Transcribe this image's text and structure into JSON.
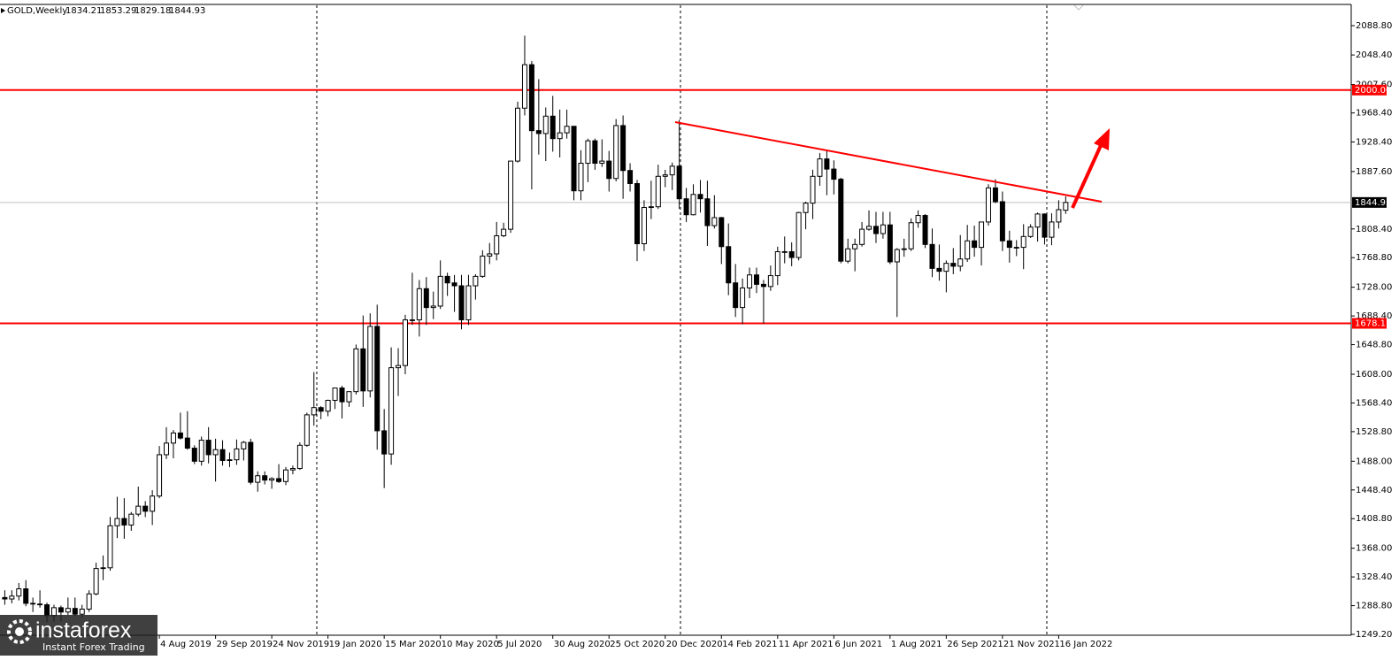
{
  "chart_data": {
    "type": "candlestick",
    "title": "GOLD,Weekly",
    "categories": [
      null,
      null,
      null,
      null,
      null,
      null,
      null,
      null,
      null,
      null,
      null,
      null,
      null,
      null,
      null,
      null,
      null,
      null,
      null,
      null,
      null,
      null,
      "4 Aug 2019",
      null,
      null,
      null,
      null,
      null,
      null,
      null,
      "29 Sep 2019",
      null,
      null,
      null,
      null,
      null,
      null,
      null,
      "24 Nov 2019",
      null,
      null,
      null,
      null,
      null,
      null,
      null,
      "19 Jan 2020",
      null,
      null,
      null,
      null,
      null,
      null,
      null,
      "15 Mar 2020",
      null,
      null,
      null,
      null,
      null,
      null,
      null,
      "10 May 2020",
      null,
      null,
      null,
      null,
      null,
      null,
      null,
      "5 Jul 2020",
      null,
      null,
      null,
      null,
      null,
      null,
      null,
      "30 Aug 2020",
      null,
      null,
      null,
      null,
      null,
      null,
      null,
      "25 Oct 2020",
      null,
      null,
      null,
      null,
      null,
      null,
      null,
      "20 Dec 2020",
      null,
      null,
      null,
      null,
      null,
      null,
      null,
      "14 Feb 2021",
      null,
      null,
      null,
      null,
      null,
      null,
      null,
      "11 Apr 2021",
      null,
      null,
      null,
      null,
      null,
      null,
      null,
      "6 Jun 2021",
      null,
      null,
      null,
      null,
      null,
      null,
      null,
      "1 Aug 2021",
      null,
      null,
      null,
      null,
      null,
      null,
      null,
      "26 Sep 2021",
      null,
      null,
      null,
      null,
      null,
      null,
      null,
      "21 Nov 2021",
      null,
      null,
      null,
      null,
      null,
      null,
      null,
      "16 Jan 2022",
      null
    ],
    "open": [
      1300,
      1298,
      1302,
      1312,
      1292,
      1291,
      1290,
      1275,
      1286,
      1280,
      1285,
      1277,
      1284,
      1305,
      1340,
      1341,
      1399,
      1409,
      1400,
      1415,
      1426,
      1419,
      1440,
      1497,
      1513,
      1527,
      1520,
      1506,
      1488,
      1517,
      1497,
      1504,
      1489,
      1490,
      1505,
      1514,
      1459,
      1468,
      1462,
      1464,
      1460,
      1476,
      1478,
      1510,
      1552,
      1562,
      1557,
      1572,
      1589,
      1570,
      1584,
      1643,
      1585,
      1674,
      1530,
      1498,
      1617,
      1620,
      1683,
      1683,
      1726,
      1700,
      1702,
      1743,
      1734,
      1730,
      1683,
      1730,
      1743,
      1771,
      1774,
      1799,
      1808,
      1902,
      1975,
      2035,
      1944,
      1940,
      1964,
      1933,
      1941,
      1950,
      1861,
      1899,
      1930,
      1899,
      1902,
      1878,
      1951,
      1889,
      1871,
      1788,
      1838,
      1839,
      1881,
      1883,
      1895,
      1850,
      1828,
      1856,
      1850,
      1813,
      1824,
      1784,
      1734,
      1700,
      1727,
      1745,
      1732,
      1729,
      1744,
      1777,
      1777,
      1769,
      1831,
      1844,
      1881,
      1905,
      1891,
      1877,
      1764,
      1781,
      1787,
      1808,
      1812,
      1802,
      1814,
      1763,
      1780,
      1781,
      1817,
      1827,
      1787,
      1754,
      1750,
      1761,
      1757,
      1767,
      1792,
      1783,
      1818,
      1865,
      1846,
      1792,
      1783,
      1783,
      1798,
      1811,
      1829,
      1797,
      1818,
      1834.21
    ],
    "high": [
      1310,
      1310,
      1320,
      1324,
      1300,
      1310,
      1293,
      1290,
      1289,
      1300,
      1300,
      1290,
      1310,
      1348,
      1358,
      1411,
      1439,
      1437,
      1418,
      1453,
      1433,
      1448,
      1509,
      1535,
      1531,
      1555,
      1557,
      1510,
      1522,
      1535,
      1519,
      1517,
      1500,
      1518,
      1516,
      1519,
      1474,
      1474,
      1466,
      1484,
      1480,
      1482,
      1514,
      1555,
      1611,
      1564,
      1573,
      1589,
      1592,
      1584,
      1649,
      1689,
      1692,
      1704,
      1560,
      1645,
      1644,
      1690,
      1748,
      1738,
      1742,
      1722,
      1765,
      1748,
      1745,
      1745,
      1745,
      1746,
      1779,
      1789,
      1818,
      1817,
      1902,
      1984,
      2075,
      2040,
      2015,
      1976,
      1992,
      1973,
      1973,
      1950,
      1917,
      1933,
      1933,
      1932,
      1916,
      1960,
      1965,
      1899,
      1876,
      1848,
      1875,
      1897,
      1890,
      1900,
      1959,
      1865,
      1870,
      1876,
      1875,
      1855,
      1825,
      1816,
      1760,
      1740,
      1755,
      1755,
      1738,
      1758,
      1784,
      1798,
      1790,
      1832,
      1846,
      1890,
      1913,
      1916,
      1903,
      1879,
      1795,
      1795,
      1818,
      1834,
      1832,
      1832,
      1832,
      1782,
      1795,
      1823,
      1834,
      1829,
      1809,
      1787,
      1765,
      1782,
      1800,
      1814,
      1813,
      1818,
      1870,
      1877,
      1860,
      1806,
      1793,
      1815,
      1815,
      1831,
      1830,
      1830,
      1848,
      1853.29
    ],
    "low": [
      1290,
      1292,
      1296,
      1288,
      1280,
      1286,
      1266,
      1267,
      1267,
      1276,
      1274,
      1272,
      1280,
      1303,
      1324,
      1337,
      1382,
      1381,
      1392,
      1412,
      1411,
      1400,
      1437,
      1491,
      1492,
      1518,
      1504,
      1484,
      1482,
      1485,
      1460,
      1482,
      1480,
      1483,
      1489,
      1456,
      1446,
      1456,
      1450,
      1458,
      1455,
      1470,
      1476,
      1508,
      1537,
      1546,
      1550,
      1560,
      1547,
      1563,
      1580,
      1563,
      1576,
      1504,
      1451,
      1483,
      1578,
      1608,
      1676,
      1660,
      1676,
      1684,
      1698,
      1716,
      1694,
      1670,
      1676,
      1711,
      1741,
      1760,
      1765,
      1797,
      1803,
      1900,
      1965,
      1863,
      1911,
      1902,
      1915,
      1907,
      1933,
      1848,
      1848,
      1873,
      1890,
      1894,
      1860,
      1874,
      1850,
      1860,
      1764,
      1778,
      1822,
      1836,
      1866,
      1862,
      1836,
      1818,
      1827,
      1831,
      1785,
      1809,
      1760,
      1717,
      1687,
      1677,
      1713,
      1720,
      1678,
      1723,
      1731,
      1761,
      1757,
      1765,
      1808,
      1822,
      1868,
      1855,
      1856,
      1761,
      1761,
      1750,
      1784,
      1806,
      1789,
      1795,
      1760,
      1687,
      1770,
      1778,
      1810,
      1782,
      1742,
      1737,
      1721,
      1746,
      1750,
      1763,
      1770,
      1758,
      1813,
      1844,
      1778,
      1762,
      1771,
      1753,
      1796,
      1791,
      1787,
      1786,
      1809,
      1829.18
    ],
    "close": [
      1298,
      1302,
      1312,
      1292,
      1291,
      1290,
      1275,
      1286,
      1280,
      1285,
      1277,
      1284,
      1305,
      1340,
      1341,
      1399,
      1409,
      1400,
      1415,
      1426,
      1419,
      1440,
      1497,
      1513,
      1527,
      1520,
      1506,
      1488,
      1517,
      1497,
      1504,
      1489,
      1490,
      1505,
      1514,
      1459,
      1468,
      1462,
      1464,
      1460,
      1476,
      1478,
      1510,
      1552,
      1562,
      1557,
      1572,
      1589,
      1570,
      1584,
      1643,
      1585,
      1674,
      1530,
      1498,
      1617,
      1620,
      1683,
      1683,
      1726,
      1700,
      1702,
      1743,
      1734,
      1730,
      1683,
      1730,
      1743,
      1771,
      1774,
      1799,
      1808,
      1902,
      1975,
      2035,
      1944,
      1940,
      1964,
      1933,
      1941,
      1950,
      1861,
      1899,
      1930,
      1899,
      1902,
      1878,
      1951,
      1889,
      1871,
      1788,
      1838,
      1839,
      1881,
      1883,
      1895,
      1850,
      1828,
      1856,
      1850,
      1813,
      1824,
      1784,
      1734,
      1700,
      1727,
      1745,
      1732,
      1729,
      1744,
      1777,
      1777,
      1769,
      1831,
      1844,
      1881,
      1905,
      1891,
      1877,
      1764,
      1781,
      1787,
      1808,
      1812,
      1802,
      1814,
      1763,
      1780,
      1781,
      1817,
      1827,
      1787,
      1754,
      1750,
      1761,
      1757,
      1767,
      1792,
      1783,
      1818,
      1865,
      1846,
      1792,
      1783,
      1783,
      1798,
      1811,
      1829,
      1797,
      1818,
      1835,
      1844.93
    ],
    "up_color": "#ffffff",
    "down_color": "#000000",
    "outline_color": "#000000",
    "ylim": [
      1248,
      2118.1
    ],
    "yticks": [
      {
        "value": 2088.8,
        "label": "2088.80"
      },
      {
        "value": 2048.4,
        "label": "2048.40"
      },
      {
        "value": 2007.6,
        "label": "2007.60"
      },
      {
        "value": 1968.4,
        "label": "1968.40"
      },
      {
        "value": 1928.4,
        "label": "1928.40"
      },
      {
        "value": 1887.6,
        "label": "1887.60"
      },
      {
        "value": 1808.4,
        "label": "1808.40"
      },
      {
        "value": 1768.8,
        "label": "1768.80"
      },
      {
        "value": 1728,
        "label": "1728.00"
      },
      {
        "value": 1688.4,
        "label": "1688.40"
      },
      {
        "value": 1648.8,
        "label": "1648.80"
      },
      {
        "value": 1608,
        "label": "1608.00"
      },
      {
        "value": 1568.4,
        "label": "1568.40"
      },
      {
        "value": 1528.8,
        "label": "1528.80"
      },
      {
        "value": 1488,
        "label": "1488.00"
      },
      {
        "value": 1448.4,
        "label": "1448.40"
      },
      {
        "value": 1408.8,
        "label": "1408.80"
      },
      {
        "value": 1368,
        "label": "1368.00"
      },
      {
        "value": 1328.4,
        "label": "1328.40"
      },
      {
        "value": 1288.8,
        "label": "1288.80"
      },
      {
        "value": 1249.2,
        "label": "1249.20"
      }
    ],
    "grid": false,
    "levels": [
      {
        "value": 2000,
        "label": "2000.00"
      },
      1678.17
    ],
    "level_color": "#ff0000",
    "price_line_color": "#c0c0c0"
  },
  "logo": {
    "name": "instaforex",
    "tagline": "Instant Forex Trading"
  }
}
